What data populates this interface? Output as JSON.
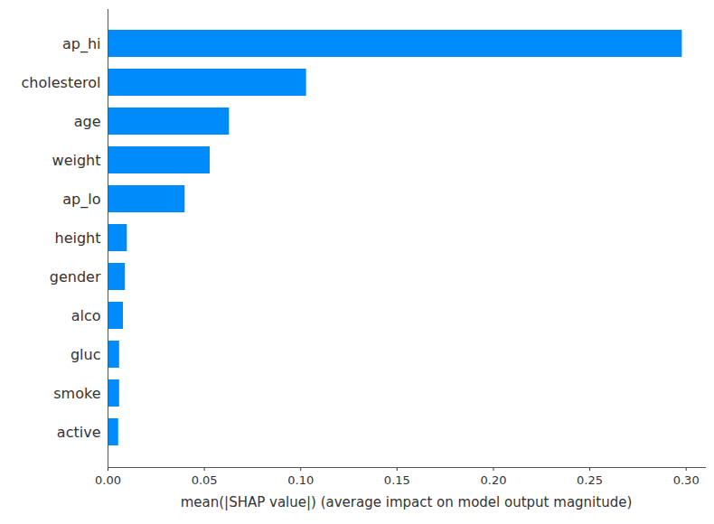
{
  "chart_data": {
    "type": "bar",
    "orientation": "horizontal",
    "xlabel": "mean(|SHAP value|) (average impact on model output magnitude)",
    "categories": [
      "ap_hi",
      "cholesterol",
      "age",
      "weight",
      "ap_lo",
      "height",
      "gender",
      "alco",
      "gluc",
      "smoke",
      "active"
    ],
    "values": [
      0.298,
      0.103,
      0.063,
      0.053,
      0.04,
      0.01,
      0.009,
      0.008,
      0.006,
      0.006,
      0.0055
    ],
    "color": "#008bfb",
    "xlim": [
      0,
      0.31
    ],
    "xticks": [
      {
        "value": 0,
        "label": "0.00"
      },
      {
        "value": 0.05,
        "label": "0.05"
      },
      {
        "value": 0.1,
        "label": "0.10"
      },
      {
        "value": 0.15,
        "label": "0.15"
      },
      {
        "value": 0.2,
        "label": "0.20"
      },
      {
        "value": 0.25,
        "label": "0.25"
      },
      {
        "value": 0.3,
        "label": "0.30"
      }
    ],
    "grid": false
  }
}
